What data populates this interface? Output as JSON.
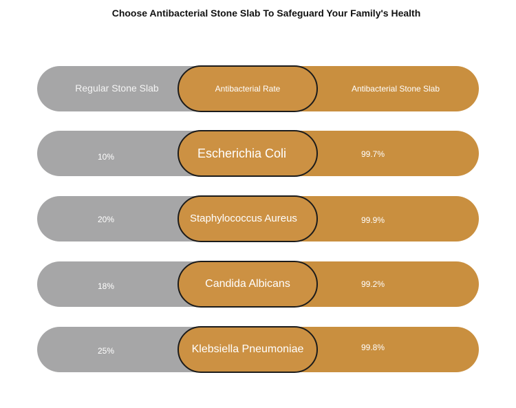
{
  "title": "Choose Antibacterial Stone Slab To Safeguard Your Family's Health",
  "chart_data": {
    "type": "table",
    "columns": [
      "Regular Stone Slab",
      "Antibacterial Rate",
      "Antibacterial Stone Slab"
    ],
    "rows": [
      {
        "bacterium": "Escherichia Coli",
        "regular": "10%",
        "antibacterial": "99.7%"
      },
      {
        "bacterium": "Staphylococcus Aureus",
        "regular": "20%",
        "antibacterial": "99.9%"
      },
      {
        "bacterium": "Candida Albicans",
        "regular": "18%",
        "antibacterial": "99.2%"
      },
      {
        "bacterium": "Klebsiella Pneumoniae",
        "regular": "25%",
        "antibacterial": "99.8%"
      }
    ]
  },
  "colors": {
    "regular": "#a6a6a7",
    "antibacterial": "#c98f3f",
    "outline": "#1b1b1b"
  }
}
